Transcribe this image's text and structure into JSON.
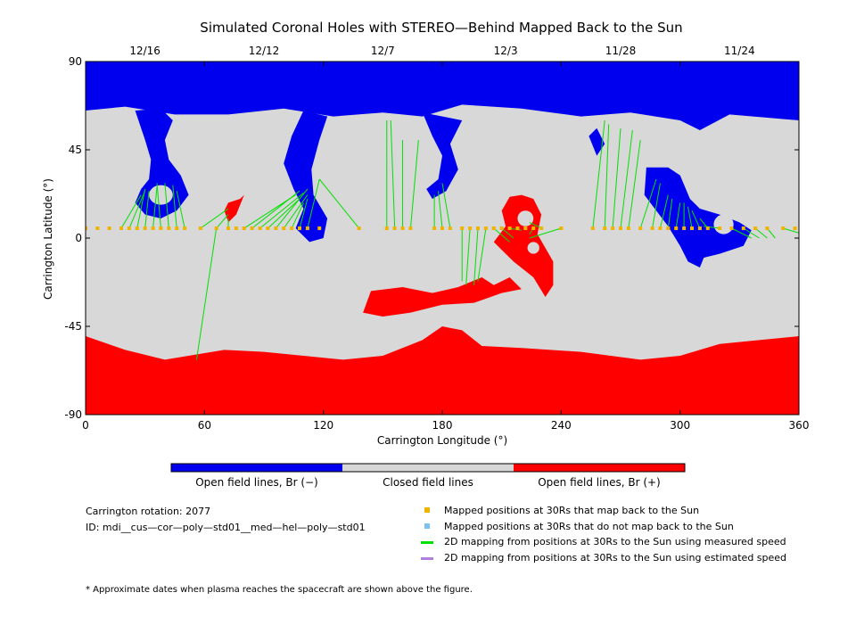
{
  "chart_data": {
    "type": "map",
    "title": "Simulated Coronal Holes with STEREO—Behind Mapped Back to the Sun",
    "xlabel": "Carrington Longitude (°)",
    "ylabel": "Carrington Latitude (°)",
    "xlim": [
      0,
      360
    ],
    "ylim": [
      -90,
      90
    ],
    "x_ticks": [
      0,
      60,
      120,
      180,
      240,
      300,
      360
    ],
    "y_ticks": [
      90,
      45,
      0,
      -45,
      -90
    ],
    "top_axis": {
      "labels": [
        "12/16",
        "12/12",
        "12/7",
        "12/3",
        "11/28",
        "11/24"
      ],
      "longitudes": [
        30,
        90,
        150,
        212,
        270,
        330
      ]
    },
    "colors": {
      "negative": "#0000ee",
      "closed": "#d8d8d8",
      "positive": "#ff0000",
      "mapped": "#f0b400",
      "not_mapped": "#7ec0ee",
      "measured": "#00e000",
      "estimated": "#b080e0"
    },
    "regions": {
      "north_negative_cap": [
        [
          0,
          90
        ],
        [
          360,
          90
        ],
        [
          360,
          60
        ],
        [
          325,
          63
        ],
        [
          310,
          55
        ],
        [
          300,
          60
        ],
        [
          275,
          64
        ],
        [
          250,
          62
        ],
        [
          220,
          66
        ],
        [
          190,
          68
        ],
        [
          170,
          62
        ],
        [
          150,
          64
        ],
        [
          125,
          62
        ],
        [
          100,
          66
        ],
        [
          72,
          63
        ],
        [
          45,
          63
        ],
        [
          20,
          67
        ],
        [
          0,
          65
        ]
      ],
      "south_positive_cap": [
        [
          0,
          -90
        ],
        [
          360,
          -90
        ],
        [
          360,
          -50
        ],
        [
          340,
          -52
        ],
        [
          320,
          -54
        ],
        [
          300,
          -60
        ],
        [
          280,
          -62
        ],
        [
          250,
          -58
        ],
        [
          220,
          -56
        ],
        [
          200,
          -55
        ],
        [
          190,
          -47
        ],
        [
          180,
          -45
        ],
        [
          170,
          -52
        ],
        [
          150,
          -60
        ],
        [
          130,
          -62
        ],
        [
          110,
          -60
        ],
        [
          90,
          -58
        ],
        [
          70,
          -57
        ],
        [
          40,
          -62
        ],
        [
          20,
          -57
        ],
        [
          0,
          -50
        ]
      ],
      "negative_patches": [
        [
          [
            25,
            65
          ],
          [
            30,
            50
          ],
          [
            33,
            40
          ],
          [
            32,
            30
          ],
          [
            28,
            25
          ],
          [
            25,
            18
          ],
          [
            30,
            12
          ],
          [
            38,
            10
          ],
          [
            46,
            14
          ],
          [
            52,
            22
          ],
          [
            48,
            32
          ],
          [
            42,
            40
          ],
          [
            40,
            50
          ],
          [
            44,
            60
          ],
          [
            38,
            66
          ]
        ],
        [
          [
            110,
            65
          ],
          [
            104,
            52
          ],
          [
            100,
            38
          ],
          [
            105,
            25
          ],
          [
            110,
            15
          ],
          [
            106,
            5
          ],
          [
            113,
            -2
          ],
          [
            120,
            0
          ],
          [
            122,
            10
          ],
          [
            115,
            22
          ],
          [
            114,
            35
          ],
          [
            118,
            50
          ],
          [
            122,
            62
          ]
        ],
        [
          [
            170,
            64
          ],
          [
            175,
            52
          ],
          [
            180,
            42
          ],
          [
            178,
            30
          ],
          [
            172,
            25
          ],
          [
            175,
            20
          ],
          [
            182,
            24
          ],
          [
            188,
            35
          ],
          [
            184,
            48
          ],
          [
            190,
            60
          ]
        ],
        [
          [
            283,
            36
          ],
          [
            294,
            36
          ],
          [
            300,
            32
          ],
          [
            305,
            20
          ],
          [
            310,
            15
          ],
          [
            320,
            12
          ],
          [
            330,
            8
          ],
          [
            336,
            4
          ],
          [
            332,
            -4
          ],
          [
            320,
            -8
          ],
          [
            312,
            -10
          ],
          [
            310,
            -15
          ],
          [
            304,
            -12
          ],
          [
            300,
            -4
          ],
          [
            294,
            6
          ],
          [
            288,
            14
          ],
          [
            282,
            22
          ]
        ],
        [
          [
            254,
            52
          ],
          [
            258,
            42
          ],
          [
            262,
            48
          ],
          [
            258,
            56
          ]
        ]
      ],
      "positive_patches": [
        [
          [
            214,
            21
          ],
          [
            220,
            22
          ],
          [
            226,
            20
          ],
          [
            230,
            12
          ],
          [
            228,
            2
          ],
          [
            232,
            -5
          ],
          [
            236,
            -12
          ],
          [
            236,
            -24
          ],
          [
            232,
            -30
          ],
          [
            226,
            -20
          ],
          [
            216,
            -12
          ],
          [
            210,
            -6
          ],
          [
            206,
            -2
          ],
          [
            212,
            6
          ],
          [
            210,
            14
          ]
        ],
        [
          [
            144,
            -27
          ],
          [
            160,
            -25
          ],
          [
            175,
            -28
          ],
          [
            188,
            -25
          ],
          [
            200,
            -20
          ],
          [
            206,
            -24
          ],
          [
            214,
            -20
          ],
          [
            220,
            -26
          ],
          [
            210,
            -28
          ],
          [
            196,
            -33
          ],
          [
            180,
            -34
          ],
          [
            164,
            -38
          ],
          [
            150,
            -40
          ],
          [
            140,
            -38
          ]
        ],
        [
          [
            72,
            18
          ],
          [
            78,
            20
          ],
          [
            80,
            22
          ],
          [
            76,
            12
          ],
          [
            72,
            8
          ],
          [
            70,
            14
          ]
        ]
      ],
      "closed_islands": [
        [
          38,
          22,
          6,
          5
        ],
        [
          222,
          10,
          4,
          4
        ],
        [
          226,
          -5,
          3,
          3
        ],
        [
          322,
          7,
          5,
          5
        ]
      ]
    },
    "footpoints_30Rs": [
      [
        0,
        5
      ],
      [
        6,
        5
      ],
      [
        12,
        5
      ],
      [
        18,
        5
      ],
      [
        22,
        5
      ],
      [
        26,
        5
      ],
      [
        30,
        5
      ],
      [
        34,
        5
      ],
      [
        38,
        5
      ],
      [
        42,
        5
      ],
      [
        46,
        5
      ],
      [
        50,
        5
      ],
      [
        58,
        5
      ],
      [
        66,
        5
      ],
      [
        72,
        5
      ],
      [
        76,
        5
      ],
      [
        80,
        5
      ],
      [
        84,
        5
      ],
      [
        88,
        5
      ],
      [
        92,
        5
      ],
      [
        96,
        5
      ],
      [
        100,
        5
      ],
      [
        104,
        5
      ],
      [
        108,
        5
      ],
      [
        112,
        5
      ],
      [
        118,
        5
      ],
      [
        138,
        5
      ],
      [
        152,
        5
      ],
      [
        156,
        5
      ],
      [
        160,
        5
      ],
      [
        164,
        5
      ],
      [
        176,
        5
      ],
      [
        180,
        5
      ],
      [
        184,
        5
      ],
      [
        190,
        5
      ],
      [
        194,
        5
      ],
      [
        198,
        5
      ],
      [
        202,
        5
      ],
      [
        206,
        5
      ],
      [
        210,
        5
      ],
      [
        214,
        5
      ],
      [
        218,
        5
      ],
      [
        222,
        5
      ],
      [
        226,
        5
      ],
      [
        230,
        5
      ],
      [
        240,
        5
      ],
      [
        256,
        5
      ],
      [
        262,
        5
      ],
      [
        266,
        5
      ],
      [
        270,
        5
      ],
      [
        274,
        5
      ],
      [
        280,
        5
      ],
      [
        286,
        5
      ],
      [
        290,
        5
      ],
      [
        294,
        5
      ],
      [
        298,
        5
      ],
      [
        302,
        5
      ],
      [
        306,
        5
      ],
      [
        310,
        5
      ],
      [
        314,
        5
      ],
      [
        320,
        5
      ],
      [
        326,
        5
      ],
      [
        332,
        5
      ],
      [
        338,
        5
      ],
      [
        344,
        5
      ],
      [
        352,
        5
      ],
      [
        358,
        5
      ]
    ],
    "mapping_lines_measured": [
      [
        [
          18,
          5
        ],
        [
          28,
          22
        ]
      ],
      [
        [
          22,
          5
        ],
        [
          30,
          24
        ]
      ],
      [
        [
          26,
          5
        ],
        [
          30,
          25
        ]
      ],
      [
        [
          30,
          5
        ],
        [
          32,
          24
        ]
      ],
      [
        [
          34,
          5
        ],
        [
          36,
          26
        ]
      ],
      [
        [
          38,
          5
        ],
        [
          36,
          28
        ]
      ],
      [
        [
          42,
          5
        ],
        [
          40,
          28
        ]
      ],
      [
        [
          46,
          5
        ],
        [
          44,
          27
        ]
      ],
      [
        [
          50,
          5
        ],
        [
          46,
          24
        ]
      ],
      [
        [
          58,
          5
        ],
        [
          72,
          15
        ]
      ],
      [
        [
          66,
          5
        ],
        [
          72,
          12
        ]
      ],
      [
        [
          72,
          5
        ],
        [
          72,
          10
        ]
      ],
      [
        [
          56,
          -62
        ],
        [
          66,
          5
        ]
      ],
      [
        [
          80,
          5
        ],
        [
          106,
          22
        ]
      ],
      [
        [
          84,
          5
        ],
        [
          108,
          24
        ]
      ],
      [
        [
          88,
          5
        ],
        [
          110,
          23
        ]
      ],
      [
        [
          92,
          5
        ],
        [
          108,
          20
        ]
      ],
      [
        [
          96,
          5
        ],
        [
          112,
          25
        ]
      ],
      [
        [
          100,
          5
        ],
        [
          112,
          22
        ]
      ],
      [
        [
          104,
          5
        ],
        [
          110,
          18
        ]
      ],
      [
        [
          108,
          5
        ],
        [
          112,
          20
        ]
      ],
      [
        [
          112,
          5
        ],
        [
          118,
          30
        ]
      ],
      [
        [
          138,
          5
        ],
        [
          118,
          30
        ]
      ],
      [
        [
          152,
          5
        ],
        [
          152,
          60
        ]
      ],
      [
        [
          156,
          5
        ],
        [
          154,
          60
        ]
      ],
      [
        [
          160,
          5
        ],
        [
          160,
          50
        ]
      ],
      [
        [
          164,
          5
        ],
        [
          168,
          50
        ]
      ],
      [
        [
          176,
          5
        ],
        [
          176,
          22
        ]
      ],
      [
        [
          180,
          5
        ],
        [
          178,
          24
        ]
      ],
      [
        [
          184,
          5
        ],
        [
          180,
          28
        ]
      ],
      [
        [
          190,
          5
        ],
        [
          190,
          -22
        ]
      ],
      [
        [
          194,
          5
        ],
        [
          192,
          -24
        ]
      ],
      [
        [
          198,
          5
        ],
        [
          196,
          -24
        ]
      ],
      [
        [
          202,
          5
        ],
        [
          198,
          -22
        ]
      ],
      [
        [
          206,
          5
        ],
        [
          214,
          -2
        ]
      ],
      [
        [
          210,
          5
        ],
        [
          216,
          0
        ]
      ],
      [
        [
          214,
          5
        ],
        [
          220,
          4
        ]
      ],
      [
        [
          222,
          5
        ],
        [
          222,
          6
        ]
      ],
      [
        [
          226,
          5
        ],
        [
          224,
          2
        ]
      ],
      [
        [
          230,
          5
        ],
        [
          224,
          8
        ]
      ],
      [
        [
          240,
          5
        ],
        [
          224,
          0
        ]
      ],
      [
        [
          256,
          5
        ],
        [
          262,
          60
        ]
      ],
      [
        [
          262,
          5
        ],
        [
          264,
          58
        ]
      ],
      [
        [
          266,
          5
        ],
        [
          270,
          56
        ]
      ],
      [
        [
          270,
          5
        ],
        [
          276,
          55
        ]
      ],
      [
        [
          274,
          5
        ],
        [
          280,
          50
        ]
      ],
      [
        [
          280,
          5
        ],
        [
          288,
          30
        ]
      ],
      [
        [
          286,
          5
        ],
        [
          290,
          28
        ]
      ],
      [
        [
          290,
          5
        ],
        [
          294,
          22
        ]
      ],
      [
        [
          294,
          5
        ],
        [
          296,
          20
        ]
      ],
      [
        [
          298,
          5
        ],
        [
          300,
          18
        ]
      ],
      [
        [
          302,
          5
        ],
        [
          302,
          18
        ]
      ],
      [
        [
          306,
          5
        ],
        [
          304,
          16
        ]
      ],
      [
        [
          310,
          5
        ],
        [
          306,
          14
        ]
      ],
      [
        [
          314,
          5
        ],
        [
          310,
          10
        ]
      ],
      [
        [
          320,
          5
        ],
        [
          312,
          6
        ]
      ],
      [
        [
          326,
          5
        ],
        [
          336,
          0
        ]
      ],
      [
        [
          332,
          5
        ],
        [
          340,
          0
        ]
      ],
      [
        [
          338,
          5
        ],
        [
          344,
          0
        ]
      ],
      [
        [
          344,
          5
        ],
        [
          348,
          0
        ]
      ],
      [
        [
          352,
          5
        ],
        [
          362,
          2
        ]
      ]
    ]
  },
  "legend": {
    "colorbar": {
      "negative_label": "Open field lines, Br (−)",
      "closed_label": "Closed field lines",
      "positive_label": "Open field lines, Br (+)"
    },
    "mapped": "Mapped positions at 30Rs that map back to the Sun",
    "not_mapped": "Mapped positions at 30Rs that do not map back to the Sun",
    "measured": "2D mapping from positions at 30Rs to the Sun using measured speed",
    "estimated": "2D mapping from positions at 30Rs to the Sun using estimated speed"
  },
  "info": {
    "rotation": "Carrington rotation: 2077",
    "id": "ID: mdi__cus—cor—poly—std01__med—hel—poly—std01"
  },
  "footnote": "* Approximate dates when plasma reaches the spacecraft are shown above the figure."
}
